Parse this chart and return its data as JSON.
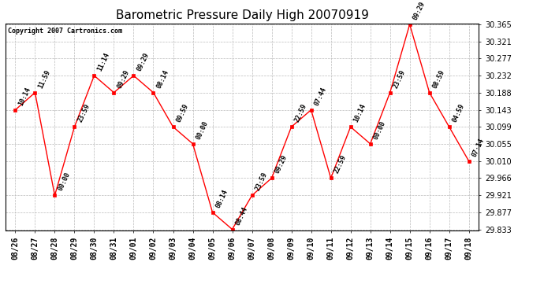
{
  "title": "Barometric Pressure Daily High 20070919",
  "copyright": "Copyright 2007 Cartronics.com",
  "x_labels": [
    "08/26",
    "08/27",
    "08/28",
    "08/29",
    "08/30",
    "08/31",
    "09/01",
    "09/02",
    "09/03",
    "09/04",
    "09/05",
    "09/06",
    "09/07",
    "09/08",
    "09/09",
    "09/10",
    "09/11",
    "09/12",
    "09/13",
    "09/14",
    "09/15",
    "09/16",
    "09/17",
    "09/18"
  ],
  "y_values": [
    30.143,
    30.188,
    29.921,
    30.099,
    30.232,
    30.188,
    30.232,
    30.188,
    30.099,
    30.055,
    29.877,
    29.833,
    29.921,
    29.966,
    30.099,
    30.143,
    29.966,
    30.099,
    30.055,
    30.188,
    30.365,
    30.188,
    30.099,
    30.01
  ],
  "point_labels": [
    "10:14",
    "11:59",
    "00:00",
    "23:59",
    "11:14",
    "09:29",
    "09:29",
    "08:14",
    "09:59",
    "00:00",
    "08:14",
    "08:44",
    "23:59",
    "09:29",
    "22:59",
    "07:44",
    "22:59",
    "10:14",
    "00:00",
    "23:59",
    "09:29",
    "08:59",
    "04:59",
    "07:14"
  ],
  "ylim_min": 29.833,
  "ylim_max": 30.365,
  "yticks": [
    29.833,
    29.877,
    29.921,
    29.966,
    30.01,
    30.055,
    30.099,
    30.143,
    30.188,
    30.232,
    30.277,
    30.321,
    30.365
  ],
  "line_color": "red",
  "marker_color": "red",
  "background_color": "white",
  "grid_color": "#bbbbbb",
  "title_fontsize": 11,
  "tick_fontsize": 7,
  "annot_fontsize": 6,
  "copyright_fontsize": 6
}
